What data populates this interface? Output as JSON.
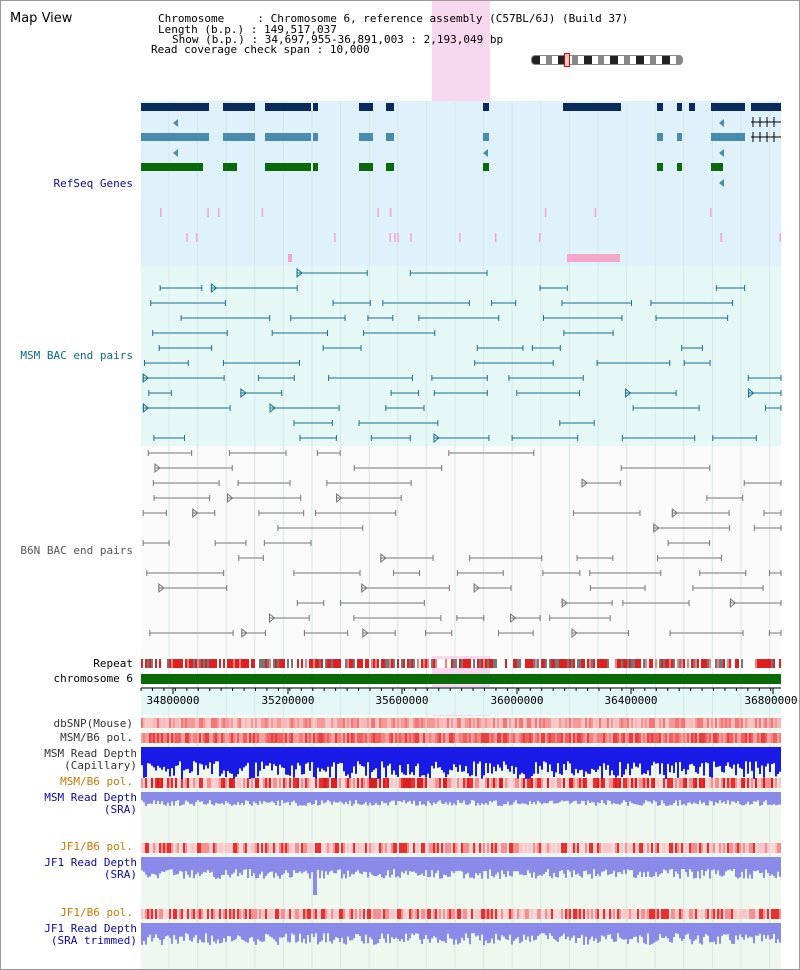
{
  "header": {
    "title": "Map View",
    "chromosome_label": "Chromosome",
    "chromosome_value": "Chromosome 6, reference assembly (C57BL/6J) (Build 37)",
    "length_label": "Length (b.p.)",
    "length_value": "149,517,037",
    "show_label": "Show (b.p.)",
    "show_value": "34,697,955-36,891,003 : 2,193,049 bp",
    "coverage_label": "Read coverage check span",
    "coverage_value": "10,000"
  },
  "tracks": {
    "refseq": "RefSeq Genes",
    "msm_bac": "MSM BAC end pairs",
    "b6n_bac": "B6N BAC end pairs",
    "repeat": "Repeat",
    "chromosome": "chromosome 6",
    "dbsnp": "dbSNP(Mouse)",
    "msm_b6_pol_1": "MSM/B6 pol.",
    "msm_read_depth_cap_1": "MSM Read Depth",
    "msm_read_depth_cap_2": "(Capillary)",
    "msm_b6_pol_2": "MSM/B6 pol.",
    "msm_read_depth_sra_1": "MSM Read Depth",
    "msm_read_depth_sra_2": "(SRA)",
    "jf1_b6_pol_1": "JF1/B6 pol.",
    "jf1_read_depth_sra_1": "JF1 Read Depth",
    "jf1_read_depth_sra_2": "(SRA)",
    "jf1_b6_pol_2": "JF1/B6 pol.",
    "jf1_read_depth_trim_1": "JF1 Read Depth",
    "jf1_read_depth_trim_2": "(SRA trimmed)"
  },
  "axis": {
    "ticks": [
      "34800000",
      "35200000",
      "35600000",
      "36000000",
      "36400000",
      "36800000"
    ]
  },
  "colors": {
    "refseq_dark": "#0a2a5e",
    "refseq_mid": "#4a8bb0",
    "refseq_green": "#0a6a0a",
    "refseq_bg": "#dff1fa",
    "msm_line": "#1a6e8e",
    "msm_bg": "#e6f8f6",
    "b6n_line": "#777777",
    "highlight": "#f8d8ee",
    "chrom_bar": "#0a6a0a",
    "depth_blue": "#1a1ae6",
    "depth_light": "#8a8ae8",
    "label_blue": "#0a0aa0",
    "label_teal": "#0a6a80",
    "label_orange": "#c87800"
  }
}
